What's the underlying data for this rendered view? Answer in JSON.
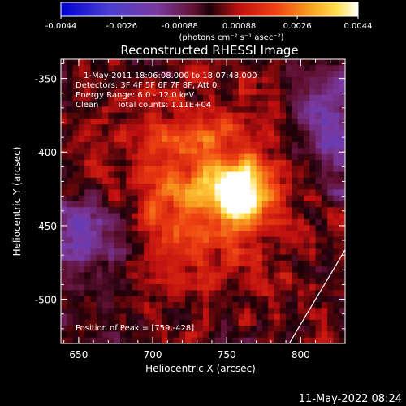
{
  "colorbar": {
    "ticks": [
      "-0.0044",
      "-0.0026",
      "-0.00088",
      "0.00088",
      "0.0026",
      "0.0044"
    ],
    "unit_label": "(photons cm⁻² s⁻¹ asec⁻²)"
  },
  "chart_data": {
    "type": "heatmap",
    "title": "Reconstructed RHESSI Image",
    "xlabel": "Heliocentric X (arcsec)",
    "ylabel": "Heliocentric Y (arcsec)",
    "xlim": [
      638,
      830
    ],
    "ylim": [
      -530,
      -337
    ],
    "xticks": [
      "650",
      "700",
      "750",
      "800"
    ],
    "yticks": [
      "-350",
      "-400",
      "-450",
      "-500"
    ],
    "zlim": [
      -0.0044,
      0.0044
    ],
    "colormap": [
      "#0000c8",
      "#5a3cc8",
      "#6a2a8a",
      "#2a0a10",
      "#c21414",
      "#f07018",
      "#ffd640",
      "#ffffff"
    ],
    "peak_xy": [
      759,
      -428
    ],
    "annotations": [
      "1-May-2011 18:06:08.000 to 18:07:48.000",
      "Detectors: 3F 4F 5F 6F 7F 8F, Att 0",
      "Energy Range: 6.0 - 12.0 keV",
      "Clean",
      "Total counts: 1.11E+04",
      "Position of Peak = [759,-428]"
    ]
  },
  "footer_date": "11-May-2022 08:24"
}
